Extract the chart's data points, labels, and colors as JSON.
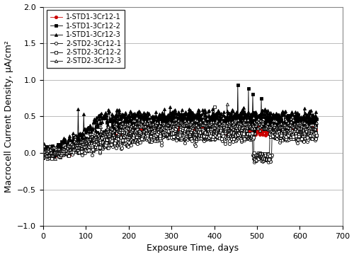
{
  "title": "",
  "xlabel": "Exposure Time, days",
  "ylabel": "Macrocell Current Density, μA/cm²",
  "xlim": [
    0,
    700
  ],
  "ylim": [
    -1.0,
    2.0
  ],
  "xticks": [
    0,
    100,
    200,
    300,
    400,
    500,
    600,
    700
  ],
  "yticks": [
    -1.0,
    -0.5,
    0.0,
    0.5,
    1.0,
    1.5,
    2.0
  ],
  "series": [
    {
      "label": "1-STD1-3Cr12-1",
      "color": "#cc0000",
      "marker": "o",
      "filled": true,
      "markersize": 3,
      "linewidth": 0.6,
      "steady_mean": 0.3,
      "steady_std": 0.07,
      "ramp_end": 220,
      "n_points": 640
    },
    {
      "label": "1-STD1-3Cr12-2",
      "color": "#000000",
      "marker": "s",
      "filled": true,
      "markersize": 3,
      "linewidth": 0.6,
      "steady_mean": 0.42,
      "steady_std": 0.1,
      "ramp_end": 200,
      "n_points": 640
    },
    {
      "label": "1-STD1-3Cr12-3",
      "color": "#000000",
      "marker": "^",
      "filled": true,
      "markersize": 3,
      "linewidth": 0.6,
      "steady_mean": 0.48,
      "steady_std": 0.09,
      "ramp_end": 140,
      "n_points": 640
    },
    {
      "label": "2-STD2-3Cr12-1",
      "color": "#000000",
      "marker": "o",
      "filled": false,
      "markersize": 3,
      "linewidth": 0.6,
      "steady_mean": 0.22,
      "steady_std": 0.07,
      "ramp_end": 250,
      "n_points": 640
    },
    {
      "label": "2-STD2-3Cr12-2",
      "color": "#000000",
      "marker": "s",
      "filled": false,
      "markersize": 3,
      "linewidth": 0.6,
      "steady_mean": 0.28,
      "steady_std": 0.08,
      "ramp_end": 200,
      "n_points": 640
    },
    {
      "label": "2-STD2-3Cr12-3",
      "color": "#000000",
      "marker": "^",
      "filled": false,
      "markersize": 3,
      "linewidth": 0.6,
      "steady_mean": 0.38,
      "steady_std": 0.09,
      "ramp_end": 180,
      "n_points": 640
    }
  ],
  "legend_fontsize": 7.0,
  "axis_fontsize": 9,
  "tick_fontsize": 8,
  "figsize": [
    5.0,
    3.63
  ],
  "dpi": 100,
  "grid_color": "#bbbbbb",
  "grid_lw": 0.7
}
